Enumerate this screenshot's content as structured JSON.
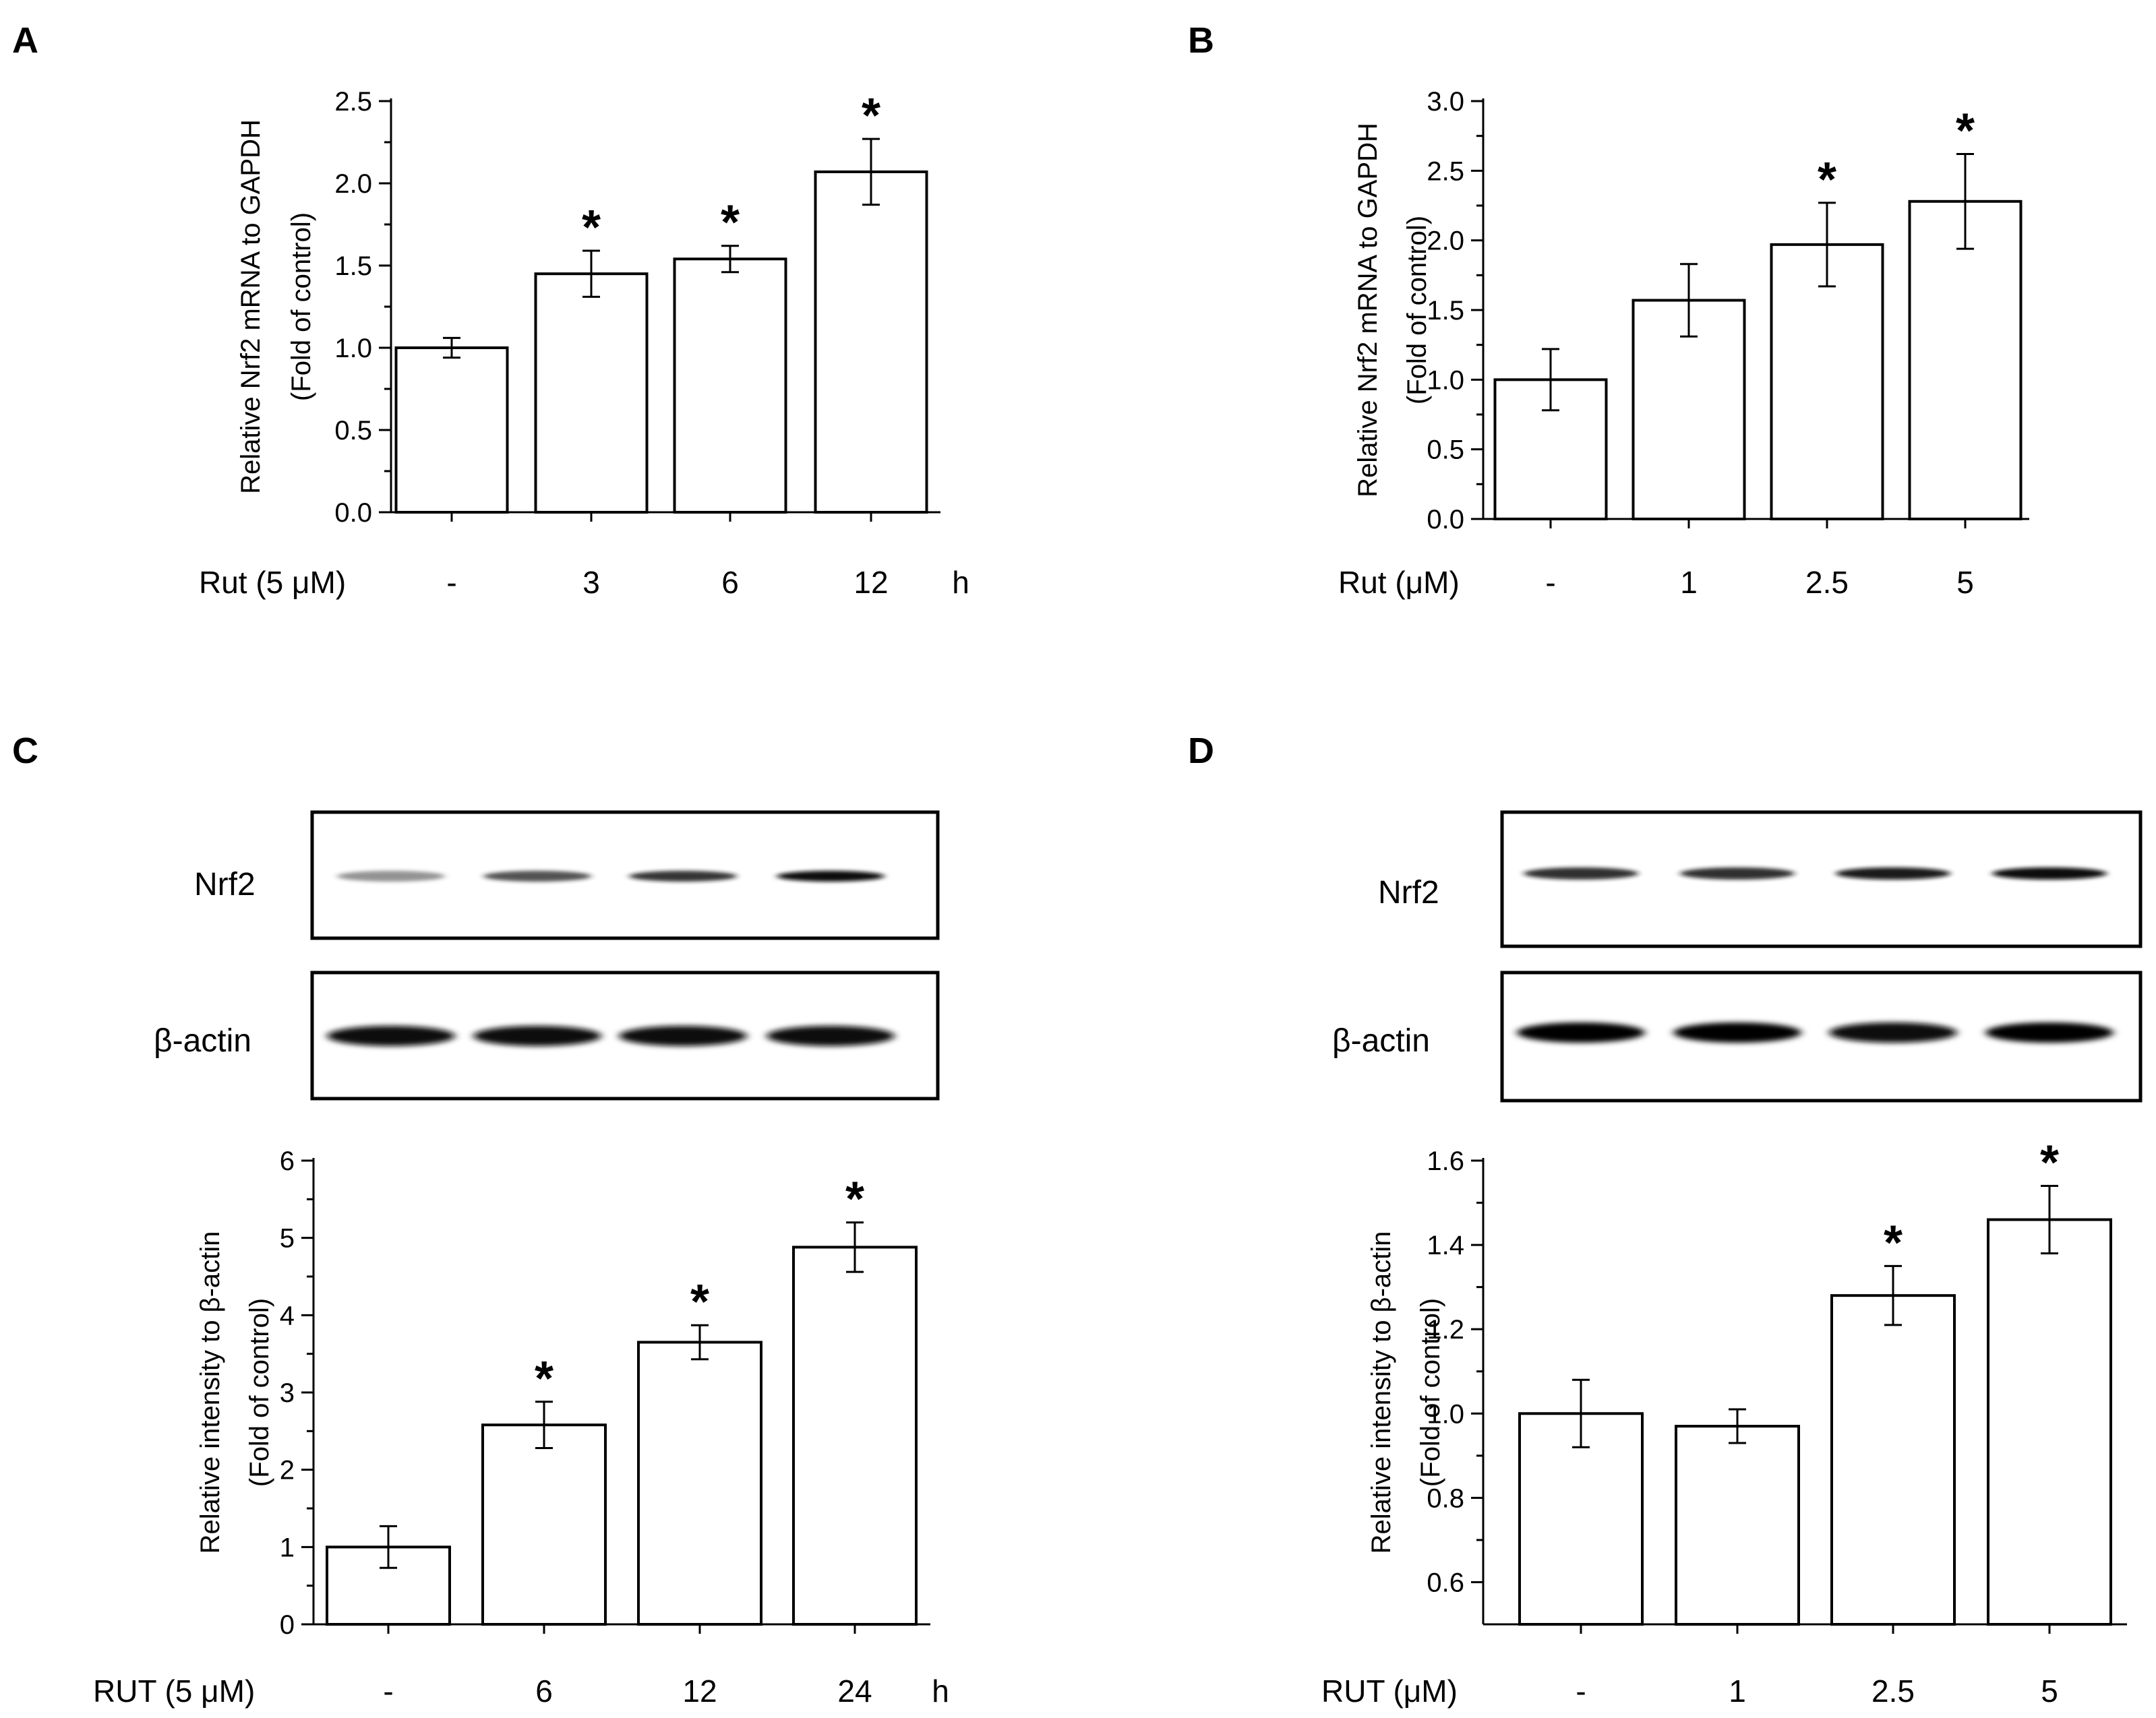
{
  "chart_data": [
    {
      "panel": "A",
      "type": "bar",
      "ylabel_line1": "Relative Nrf2 mRNA to GAPDH",
      "ylabel_line2": "(Fold of control)",
      "ylim": [
        0,
        2.5
      ],
      "yticks": [
        "0.0",
        "0.5",
        "1.0",
        "1.5",
        "2.0",
        "2.5"
      ],
      "condition_label": "Rut  (5 μM)",
      "categories": [
        "-",
        "3",
        "6",
        "12"
      ],
      "unit_label": "h",
      "values": [
        1.0,
        1.45,
        1.54,
        2.07
      ],
      "errors": [
        0.06,
        0.14,
        0.08,
        0.2
      ],
      "significance": [
        "",
        "*",
        "*",
        "*"
      ]
    },
    {
      "panel": "B",
      "type": "bar",
      "ylabel_line1": "Relative Nrf2 mRNA to GAPDH",
      "ylabel_line2": "(Fold of control)",
      "ylim": [
        0,
        3.0
      ],
      "yticks": [
        "0.0",
        "0.5",
        "1.0",
        "1.5",
        "2.0",
        "2.5",
        "3.0"
      ],
      "condition_label": "Rut  (μM)",
      "categories": [
        "-",
        "1",
        "2.5",
        "5"
      ],
      "unit_label": "",
      "values": [
        1.0,
        1.57,
        1.97,
        2.28
      ],
      "errors": [
        0.22,
        0.26,
        0.3,
        0.34
      ],
      "significance": [
        "",
        "",
        "*",
        "*"
      ]
    },
    {
      "panel": "C",
      "type": "bar",
      "ylabel_line1": "Relative intensity to β-actin",
      "ylabel_line2": "(Fold of control)",
      "ylim": [
        0,
        6
      ],
      "yticks": [
        "0",
        "1",
        "2",
        "3",
        "4",
        "5",
        "6"
      ],
      "condition_label": "RUT  (5 μM)",
      "categories": [
        "-",
        "6",
        "12",
        "24"
      ],
      "unit_label": "h",
      "values": [
        1.0,
        2.58,
        3.65,
        4.88
      ],
      "errors": [
        0.27,
        0.3,
        0.22,
        0.32
      ],
      "significance": [
        "",
        "*",
        "*",
        "*"
      ]
    },
    {
      "panel": "D",
      "type": "bar",
      "ylabel_line1": "Relative intensity to β-actin",
      "ylabel_line2": "(Fold of control)",
      "ylim": [
        0.5,
        1.6
      ],
      "yticks": [
        "0.6",
        "0.8",
        "1.0",
        "1.2",
        "1.4",
        "1.6"
      ],
      "condition_label": "RUT  (μM)",
      "categories": [
        "-",
        "1",
        "2.5",
        "5"
      ],
      "unit_label": "",
      "values": [
        1.0,
        0.97,
        1.28,
        1.46
      ],
      "errors": [
        0.08,
        0.04,
        0.07,
        0.08
      ],
      "significance": [
        "",
        "",
        "*",
        "*"
      ]
    }
  ],
  "blots": {
    "C": {
      "rows": [
        "Nrf2",
        "β-actin"
      ],
      "nrf2_intensity": [
        0.3,
        0.6,
        0.72,
        0.9
      ],
      "actin_intensity": [
        0.95,
        0.9,
        0.88,
        0.92
      ]
    },
    "D": {
      "rows": [
        "Nrf2",
        "β-actin"
      ],
      "nrf2_intensity": [
        0.75,
        0.75,
        0.82,
        0.95
      ],
      "actin_intensity": [
        0.98,
        0.98,
        0.96,
        0.98
      ]
    }
  }
}
